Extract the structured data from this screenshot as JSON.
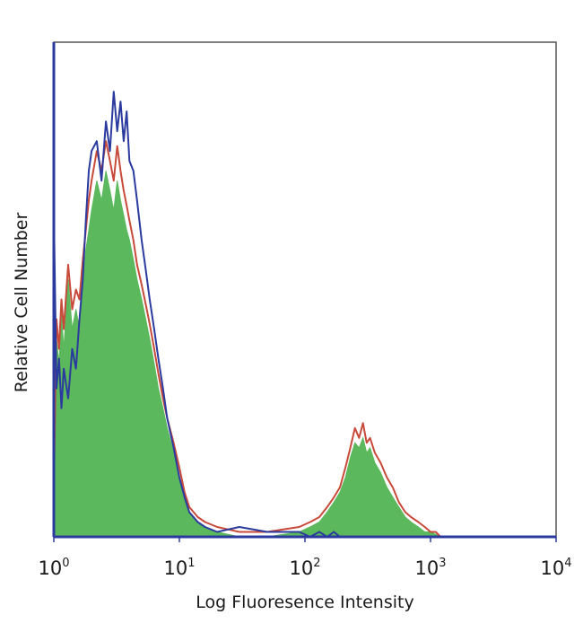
{
  "chart_data": {
    "type": "area",
    "title": "",
    "xlabel": "Log Fluoresence Intensity",
    "ylabel": "Relative Cell Number",
    "xscale": "log",
    "xlim": [
      1,
      10000
    ],
    "ylim": [
      0,
      100
    ],
    "x_ticks": [
      {
        "value": 1,
        "base": "10",
        "exp": "0"
      },
      {
        "value": 10,
        "base": "10",
        "exp": "1"
      },
      {
        "value": 100,
        "base": "10",
        "exp": "2"
      },
      {
        "value": 1000,
        "base": "10",
        "exp": "3"
      },
      {
        "value": 10000,
        "base": "10",
        "exp": "4"
      }
    ],
    "grid": false,
    "legend": "none",
    "series": [
      {
        "color": "#5cb85c",
        "style": "filled",
        "x": [
          1.0,
          1.05,
          1.1,
          1.15,
          1.2,
          1.3,
          1.4,
          1.5,
          1.6,
          1.7,
          1.8,
          1.9,
          2.0,
          2.2,
          2.4,
          2.6,
          2.8,
          3.0,
          3.2,
          3.4,
          3.6,
          3.8,
          4.0,
          4.3,
          4.6,
          5.0,
          5.4,
          5.8,
          6.3,
          6.8,
          7.4,
          8.0,
          9.0,
          10,
          11,
          12,
          14,
          16,
          20,
          30,
          50,
          90,
          110,
          130,
          150,
          170,
          190,
          210,
          230,
          250,
          270,
          290,
          310,
          330,
          360,
          400,
          450,
          500,
          560,
          630,
          700,
          800,
          900,
          1000,
          1100,
          1200
        ],
        "values": [
          5,
          40,
          35,
          45,
          38,
          52,
          42,
          46,
          42,
          50,
          58,
          62,
          66,
          72,
          68,
          74,
          70,
          66,
          72,
          68,
          65,
          62,
          60,
          56,
          52,
          48,
          44,
          40,
          35,
          30,
          26,
          22,
          17,
          12,
          8,
          5,
          3,
          2,
          1,
          0,
          0,
          1,
          2,
          3,
          5,
          7,
          9,
          12,
          16,
          19,
          18,
          20,
          17,
          18,
          15,
          13,
          10,
          8,
          6,
          4,
          3,
          2,
          1,
          1,
          0.5,
          0
        ]
      },
      {
        "color": "#c84a3a",
        "style": "line",
        "x": [
          1.0,
          1.05,
          1.1,
          1.15,
          1.2,
          1.3,
          1.4,
          1.5,
          1.6,
          1.7,
          1.8,
          1.9,
          2.0,
          2.2,
          2.4,
          2.6,
          2.8,
          3.0,
          3.2,
          3.4,
          3.6,
          3.8,
          4.0,
          4.3,
          4.6,
          5.0,
          5.4,
          5.8,
          6.3,
          6.8,
          7.4,
          8.0,
          9.0,
          10,
          11,
          12,
          14,
          16,
          20,
          30,
          50,
          90,
          110,
          130,
          150,
          170,
          190,
          210,
          230,
          250,
          270,
          290,
          310,
          330,
          360,
          400,
          450,
          500,
          560,
          630,
          700,
          800,
          900,
          1000,
          1100,
          1200
        ],
        "values": [
          10,
          44,
          38,
          48,
          42,
          55,
          46,
          50,
          48,
          56,
          62,
          68,
          72,
          78,
          74,
          80,
          76,
          72,
          79,
          74,
          70,
          67,
          64,
          60,
          55,
          51,
          47,
          43,
          38,
          33,
          28,
          24,
          19,
          14,
          9,
          6,
          4,
          3,
          2,
          1,
          1,
          2,
          3,
          4,
          6,
          8,
          10,
          14,
          18,
          22,
          20,
          23,
          19,
          20,
          17,
          15,
          12,
          10,
          7,
          5,
          4,
          3,
          2,
          1,
          1,
          0
        ]
      },
      {
        "color": "#2b3a9e",
        "style": "line",
        "x": [
          1.0,
          1.05,
          1.1,
          1.15,
          1.2,
          1.3,
          1.4,
          1.5,
          1.6,
          1.7,
          1.8,
          1.9,
          2.0,
          2.2,
          2.4,
          2.6,
          2.8,
          3.0,
          3.2,
          3.4,
          3.6,
          3.8,
          4.0,
          4.3,
          4.6,
          5.0,
          5.4,
          5.8,
          6.3,
          6.8,
          7.4,
          8.0,
          9.0,
          10,
          11,
          12,
          14,
          16,
          20,
          30,
          50,
          90,
          110,
          130,
          150,
          170,
          190,
          210
        ],
        "values": [
          66,
          30,
          36,
          26,
          34,
          28,
          38,
          34,
          44,
          52,
          64,
          74,
          78,
          80,
          72,
          84,
          78,
          90,
          82,
          88,
          80,
          86,
          76,
          74,
          68,
          60,
          54,
          48,
          42,
          36,
          30,
          24,
          18,
          12,
          8,
          5,
          3,
          2,
          1,
          2,
          1,
          1,
          0,
          1,
          0,
          1,
          0,
          0
        ]
      }
    ]
  }
}
